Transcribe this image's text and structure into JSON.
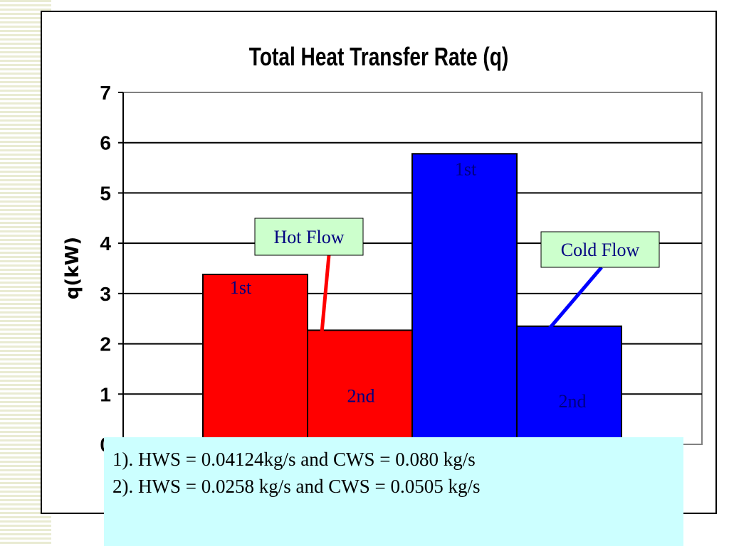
{
  "chart_data": {
    "type": "bar",
    "title": "Total Heat Transfer Rate (q)",
    "ylabel": "q(kW)",
    "xlabel": "",
    "ylim": [
      0,
      7
    ],
    "yticks": [
      "0",
      "1",
      "2",
      "3",
      "4",
      "5",
      "6",
      "7"
    ],
    "grid": true,
    "colors": {
      "hot": "#ff0000",
      "cold": "#0000ff",
      "annotation_bg": "#ccffcc",
      "note_bg": "#ccffff"
    },
    "bars": [
      {
        "group": "Hot Flow",
        "label": "1st",
        "value": 3.38,
        "color": "#ff0000",
        "label_color": "#000080"
      },
      {
        "group": "Hot Flow",
        "label": "2nd",
        "value": 2.27,
        "color": "#ff0000",
        "label_color": "#000080"
      },
      {
        "group": "Cold Flow",
        "label": "1st",
        "value": 5.78,
        "color": "#0000ff",
        "label_color": "#000080"
      },
      {
        "group": "Cold Flow",
        "label": "2nd",
        "value": 2.35,
        "color": "#0000ff",
        "label_color": "#000080"
      }
    ],
    "annotations": [
      {
        "text": "Hot Flow",
        "points_to_bar": 1,
        "arrow_color": "#ff0000"
      },
      {
        "text": "Cold Flow",
        "points_to_bar": 3,
        "arrow_color": "#0000ff"
      }
    ]
  },
  "note": {
    "line1": "1). HWS = 0.04124kg/s and CWS = 0.080 kg/s",
    "line2": "2). HWS = 0.0258 kg/s and CWS = 0.0505 kg/s"
  }
}
